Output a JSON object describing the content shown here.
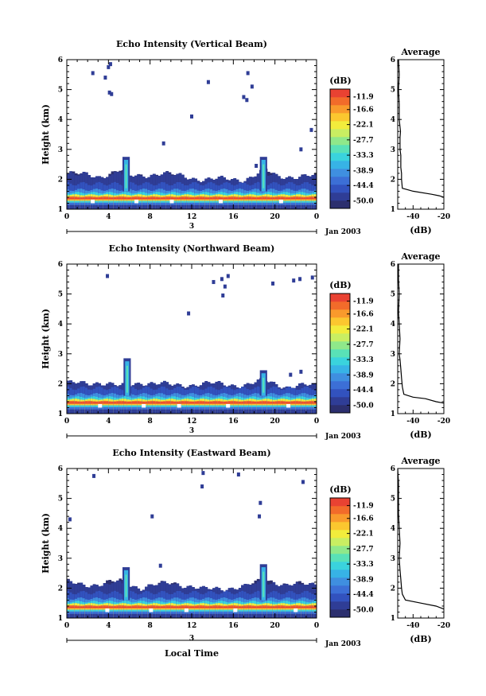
{
  "xaxis_title": "Local Time",
  "chart_data": [
    {
      "type": "heatmap",
      "title": "Echo Intensity (Vertical Beam)",
      "ylabel": "Height (km)",
      "xlim": [
        0,
        24
      ],
      "ylim": [
        1,
        6
      ],
      "x_ticks": [
        "0",
        "4",
        "8",
        "12",
        "16",
        "20",
        "0"
      ],
      "y_ticks": [
        "1",
        "2",
        "3",
        "4",
        "5",
        "6"
      ],
      "date_day": "3",
      "date_label": "Jan 2003",
      "colorbar": {
        "unit": "(dB)",
        "labels": [
          "-11.9",
          "-16.6",
          "-22.1",
          "-27.7",
          "-33.3",
          "-38.9",
          "-44.4",
          "-50.0"
        ],
        "range": [
          -52.8,
          -9.1
        ]
      },
      "cloud_top": [
        [
          0,
          2.2
        ],
        [
          3,
          2.1
        ],
        [
          5,
          2.3
        ],
        [
          6,
          2.1
        ],
        [
          9,
          2.2
        ],
        [
          13,
          2.0
        ],
        [
          17,
          2.0
        ],
        [
          19,
          2.3
        ],
        [
          20,
          2.1
        ],
        [
          24,
          2.1
        ]
      ],
      "plumes": [
        {
          "x": 5.7,
          "top": 2.75
        },
        {
          "x": 18.9,
          "top": 2.75
        }
      ],
      "scatter_points": [
        [
          4.0,
          5.75
        ],
        [
          4.2,
          5.85
        ],
        [
          3.7,
          5.4
        ],
        [
          2.5,
          5.55
        ],
        [
          4.1,
          4.9
        ],
        [
          4.3,
          4.85
        ],
        [
          13.6,
          5.25
        ],
        [
          17.4,
          5.55
        ],
        [
          17.8,
          5.1
        ],
        [
          17.3,
          4.65
        ],
        [
          17.0,
          4.75
        ],
        [
          12.0,
          4.1
        ],
        [
          23.5,
          3.65
        ],
        [
          9.3,
          3.2
        ],
        [
          18.2,
          2.45
        ],
        [
          22.5,
          3.0
        ]
      ],
      "average": {
        "title": "Average",
        "xlabel": "(dB)",
        "xlim": [
          -50,
          -20
        ],
        "x_ticks": [
          "-40",
          "-20"
        ],
        "profile": [
          [
            -20,
            1.4
          ],
          [
            -23,
            1.45
          ],
          [
            -28,
            1.5
          ],
          [
            -40,
            1.6
          ],
          [
            -47,
            1.7
          ],
          [
            -47.5,
            2.0
          ],
          [
            -47.5,
            2.2
          ],
          [
            -48,
            2.4
          ],
          [
            -48,
            2.8
          ],
          [
            -48.5,
            3.0
          ],
          [
            -48.5,
            3.4
          ],
          [
            -48.2,
            3.6
          ],
          [
            -49,
            4.0
          ],
          [
            -49,
            4.5
          ],
          [
            -49.5,
            5.0
          ],
          [
            -49,
            5.5
          ],
          [
            -49.5,
            6.0
          ]
        ]
      }
    },
    {
      "type": "heatmap",
      "title": "Echo Intensity (Northward Beam)",
      "ylabel": "Height (km)",
      "xlim": [
        0,
        24
      ],
      "ylim": [
        1,
        6
      ],
      "x_ticks": [
        "0",
        "4",
        "8",
        "12",
        "16",
        "20",
        "0"
      ],
      "y_ticks": [
        "1",
        "2",
        "3",
        "4",
        "5",
        "6"
      ],
      "date_day": "3",
      "date_label": "Jan 2003",
      "colorbar": {
        "unit": "(dB)",
        "labels": [
          "-11.9",
          "-16.6",
          "-22.1",
          "-27.7",
          "-33.3",
          "-38.9",
          "-44.4",
          "-50.0"
        ],
        "range": [
          -52.8,
          -9.1
        ]
      },
      "cloud_top": [
        [
          0,
          2.0
        ],
        [
          3,
          2.05
        ],
        [
          5,
          1.9
        ],
        [
          7,
          2.05
        ],
        [
          10,
          1.95
        ],
        [
          14,
          2.0
        ],
        [
          17,
          1.95
        ],
        [
          19,
          2.1
        ],
        [
          21,
          1.9
        ],
        [
          24,
          1.95
        ]
      ],
      "plumes": [
        {
          "x": 5.8,
          "top": 2.85
        },
        {
          "x": 18.9,
          "top": 2.45
        }
      ],
      "scatter_points": [
        [
          3.9,
          5.6
        ],
        [
          14.1,
          5.4
        ],
        [
          14.9,
          5.5
        ],
        [
          15.5,
          5.6
        ],
        [
          15.2,
          5.25
        ],
        [
          15.0,
          4.95
        ],
        [
          19.8,
          5.35
        ],
        [
          21.8,
          5.45
        ],
        [
          22.4,
          5.5
        ],
        [
          23.6,
          5.55
        ],
        [
          11.7,
          4.35
        ],
        [
          21.5,
          2.3
        ],
        [
          22.5,
          2.4
        ]
      ],
      "average": {
        "title": "Average",
        "xlabel": "(dB)",
        "xlim": [
          -50,
          -20
        ],
        "x_ticks": [
          "-40",
          "-20"
        ],
        "profile": [
          [
            -20,
            1.35
          ],
          [
            -25,
            1.4
          ],
          [
            -32,
            1.5
          ],
          [
            -40,
            1.55
          ],
          [
            -46,
            1.65
          ],
          [
            -47,
            1.9
          ],
          [
            -47.5,
            2.2
          ],
          [
            -48,
            2.5
          ],
          [
            -48.5,
            2.8
          ],
          [
            -49,
            3.0
          ],
          [
            -48.5,
            3.5
          ],
          [
            -49,
            4.0
          ],
          [
            -49.5,
            4.4
          ],
          [
            -49,
            5.0
          ],
          [
            -49.5,
            5.5
          ],
          [
            -49.5,
            6.0
          ]
        ]
      }
    },
    {
      "type": "heatmap",
      "title": "Echo Intensity (Eastward Beam)",
      "ylabel": "Height (km)",
      "xlim": [
        0,
        24
      ],
      "ylim": [
        1,
        6
      ],
      "x_ticks": [
        "0",
        "4",
        "8",
        "12",
        "16",
        "20",
        "0"
      ],
      "y_ticks": [
        "1",
        "2",
        "3",
        "4",
        "5",
        "6"
      ],
      "date_day": "3",
      "date_label": "Jan 2003",
      "colorbar": {
        "unit": "(dB)",
        "labels": [
          "-11.9",
          "-16.6",
          "-22.1",
          "-27.7",
          "-33.3",
          "-38.9",
          "-44.4",
          "-50.0"
        ],
        "range": [
          -52.8,
          -9.1
        ]
      },
      "cloud_top": [
        [
          0,
          2.2
        ],
        [
          3,
          2.1
        ],
        [
          5,
          2.25
        ],
        [
          7,
          2.0
        ],
        [
          10,
          2.2
        ],
        [
          13,
          1.95
        ],
        [
          17,
          2.05
        ],
        [
          19,
          2.3
        ],
        [
          21,
          2.1
        ],
        [
          24,
          2.15
        ]
      ],
      "plumes": [
        {
          "x": 5.7,
          "top": 2.7
        },
        {
          "x": 18.9,
          "top": 2.8
        }
      ],
      "scatter_points": [
        [
          2.6,
          5.75
        ],
        [
          13.1,
          5.85
        ],
        [
          13.0,
          5.4
        ],
        [
          16.5,
          5.8
        ],
        [
          22.7,
          5.55
        ],
        [
          18.6,
          4.85
        ],
        [
          18.5,
          4.4
        ],
        [
          8.2,
          4.4
        ],
        [
          0.3,
          4.3
        ],
        [
          9.0,
          2.75
        ]
      ],
      "average": {
        "title": "Average",
        "xlabel": "(dB)",
        "xlim": [
          -50,
          -20
        ],
        "x_ticks": [
          "-40",
          "-20"
        ],
        "profile": [
          [
            -20,
            1.3
          ],
          [
            -25,
            1.4
          ],
          [
            -35,
            1.5
          ],
          [
            -45,
            1.6
          ],
          [
            -47,
            1.8
          ],
          [
            -47.5,
            2.0
          ],
          [
            -48,
            2.3
          ],
          [
            -48.5,
            2.6
          ],
          [
            -49,
            3.0
          ],
          [
            -48.5,
            3.5
          ],
          [
            -49,
            4.0
          ],
          [
            -49.5,
            4.5
          ],
          [
            -49.5,
            5.0
          ],
          [
            -49.5,
            5.5
          ],
          [
            -50,
            6.0
          ]
        ]
      }
    }
  ]
}
